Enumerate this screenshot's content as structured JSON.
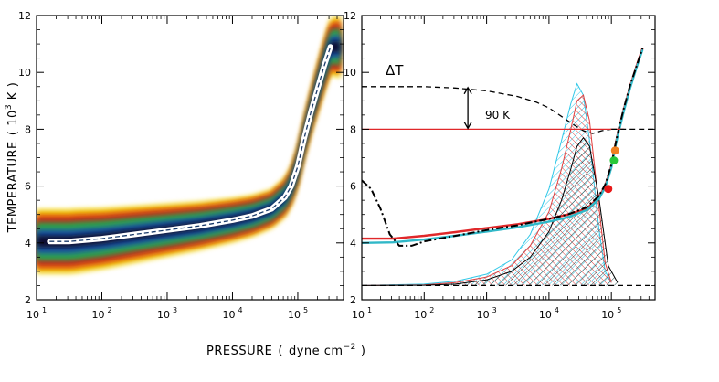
{
  "chart_data": [
    {
      "type": "heatmap",
      "panel": "left",
      "title": "",
      "xlabel_main": "PRESSURE",
      "xlabel_unit": "dyne cm",
      "xlabel_exp": "−2",
      "ylabel_main": "TEMPERATURE",
      "ylabel_unit_base": "10",
      "ylabel_unit_exp": "3",
      "ylabel_unit_tail": " K",
      "xscale": "log",
      "xlim_log10": [
        1.0,
        5.7
      ],
      "ylim": [
        2,
        12
      ],
      "x_ticks": [
        {
          "base": "10",
          "exp": "1"
        },
        {
          "base": "10",
          "exp": "2"
        },
        {
          "base": "10",
          "exp": "3"
        },
        {
          "base": "10",
          "exp": "4"
        },
        {
          "base": "10",
          "exp": "5"
        }
      ],
      "x_tick_log10": [
        1,
        2,
        3,
        4,
        5
      ],
      "y_ticks": [
        "2",
        "4",
        "6",
        "8",
        "10",
        "12"
      ],
      "y_tick_values": [
        2,
        4,
        6,
        8,
        10,
        12
      ],
      "mean_curve": {
        "name": "mean T(P)",
        "log10_p": [
          1.2,
          1.5,
          2.0,
          2.5,
          3.0,
          3.5,
          4.0,
          4.3,
          4.6,
          4.8,
          4.9,
          5.0,
          5.1,
          5.2,
          5.3,
          5.4,
          5.5
        ],
        "t": [
          4.05,
          4.05,
          4.15,
          4.3,
          4.45,
          4.6,
          4.8,
          4.95,
          5.2,
          5.6,
          6.0,
          6.7,
          7.7,
          8.6,
          9.4,
          10.2,
          10.9
        ]
      },
      "colors": [
        "#0a1030",
        "#1f5aa6",
        "#2aa74a",
        "#f2d40c",
        "#e46a10",
        "#c81e1e"
      ]
    },
    {
      "type": "line",
      "panel": "right",
      "xscale": "log",
      "xlim_log10": [
        1.0,
        5.7
      ],
      "ylim": [
        2,
        12
      ],
      "x_ticks": [
        {
          "base": "10",
          "exp": "1"
        },
        {
          "base": "10",
          "exp": "2"
        },
        {
          "base": "10",
          "exp": "3"
        },
        {
          "base": "10",
          "exp": "4"
        },
        {
          "base": "10",
          "exp": "5"
        }
      ],
      "x_tick_log10": [
        1,
        2,
        3,
        4,
        5
      ],
      "y_ticks": [
        "2",
        "4",
        "6",
        "8",
        "10",
        "12"
      ],
      "y_tick_values": [
        2,
        4,
        6,
        8,
        10,
        12
      ],
      "annotations": {
        "delta_t": "ΔT",
        "delta_value": "90 K",
        "arrow_log10_p": 2.7,
        "arrow_t_top": 9.5,
        "arrow_t_bottom": 8.0
      },
      "series": [
        {
          "name": "model red",
          "color": "#e0282a",
          "style": "solid",
          "log10_p": [
            1.0,
            1.5,
            2.0,
            2.5,
            3.0,
            3.5,
            4.0,
            4.3,
            4.6,
            4.8,
            4.9,
            5.0,
            5.05,
            5.1,
            5.2,
            5.3,
            5.4,
            5.5
          ],
          "t": [
            4.15,
            4.15,
            4.25,
            4.38,
            4.52,
            4.66,
            4.85,
            5.0,
            5.2,
            5.6,
            6.0,
            6.7,
            7.3,
            7.8,
            8.7,
            9.5,
            10.2,
            10.85
          ]
        },
        {
          "name": "model cyan",
          "color": "#30b8c8",
          "style": "solid",
          "log10_p": [
            1.0,
            1.5,
            2.0,
            2.5,
            3.0,
            3.5,
            4.0,
            4.3,
            4.6,
            4.8,
            4.9,
            5.0,
            5.05,
            5.1,
            5.2,
            5.3,
            5.4,
            5.5
          ],
          "t": [
            4.0,
            4.02,
            4.12,
            4.25,
            4.4,
            4.55,
            4.75,
            4.9,
            5.15,
            5.55,
            5.95,
            6.65,
            7.25,
            7.75,
            8.65,
            9.45,
            10.15,
            10.8
          ]
        },
        {
          "name": "dash-dot black",
          "color": "#000000",
          "style": "dashdot",
          "log10_p": [
            1.0,
            1.15,
            1.3,
            1.45,
            1.6,
            1.8,
            2.0,
            2.5,
            3.0,
            3.5,
            4.0,
            4.3,
            4.6,
            4.8,
            4.9,
            5.0,
            5.05,
            5.1,
            5.2,
            5.3,
            5.4,
            5.5
          ],
          "t": [
            6.2,
            5.9,
            5.2,
            4.3,
            3.9,
            3.9,
            4.05,
            4.25,
            4.45,
            4.62,
            4.85,
            5.0,
            5.25,
            5.65,
            6.05,
            6.75,
            7.3,
            7.85,
            8.75,
            9.55,
            10.2,
            10.85
          ]
        },
        {
          "name": "dashed black",
          "color": "#000000",
          "style": "dashed",
          "log10_p": [
            1.0,
            1.5,
            2.0,
            2.5,
            3.0,
            3.5,
            3.8,
            4.0,
            4.2,
            4.4,
            4.55,
            4.7,
            4.85,
            5.0
          ],
          "t": [
            9.5,
            9.5,
            9.5,
            9.45,
            9.35,
            9.15,
            8.95,
            8.75,
            8.45,
            8.15,
            7.95,
            7.85,
            7.95,
            8.0
          ]
        },
        {
          "name": "red horizontal 8",
          "color": "#e0282a",
          "style": "solid",
          "log10_p": [
            1.0,
            5.2
          ],
          "t": [
            8.0,
            8.0
          ]
        },
        {
          "name": "dashed black 8",
          "color": "#000000",
          "style": "dashed",
          "log10_p": [
            5.0,
            5.7
          ],
          "t": [
            8.0,
            8.0
          ]
        },
        {
          "name": "baseline dashed",
          "color": "#000000",
          "style": "dashed",
          "log10_p": [
            1.0,
            5.7
          ],
          "t": [
            2.5,
            2.5
          ]
        }
      ],
      "distributions": [
        {
          "name": "cyan hatched",
          "color": "#30c8e8",
          "log10_p": [
            1.0,
            2.0,
            2.5,
            3.0,
            3.4,
            3.7,
            4.0,
            4.2,
            4.35,
            4.45,
            4.55,
            4.65,
            4.8,
            4.9,
            5.0
          ],
          "t": [
            2.5,
            2.55,
            2.65,
            2.9,
            3.4,
            4.3,
            5.9,
            7.6,
            8.9,
            9.6,
            9.2,
            7.6,
            4.5,
            3.0,
            2.6
          ]
        },
        {
          "name": "red hatched",
          "color": "#e04040",
          "log10_p": [
            1.0,
            2.0,
            2.5,
            3.0,
            3.4,
            3.7,
            4.0,
            4.2,
            4.35,
            4.45,
            4.55,
            4.65,
            4.8,
            4.9,
            5.0
          ],
          "t": [
            2.5,
            2.52,
            2.6,
            2.8,
            3.2,
            3.9,
            5.1,
            6.6,
            8.0,
            9.0,
            9.2,
            8.3,
            5.3,
            3.3,
            2.6
          ]
        },
        {
          "name": "black hatched",
          "color": "#000000",
          "log10_p": [
            1.0,
            2.0,
            2.5,
            3.0,
            3.4,
            3.7,
            4.0,
            4.2,
            4.35,
            4.45,
            4.55,
            4.65,
            4.8,
            4.95,
            5.1
          ],
          "t": [
            2.5,
            2.51,
            2.55,
            2.7,
            3.0,
            3.5,
            4.4,
            5.5,
            6.6,
            7.4,
            7.7,
            7.4,
            5.6,
            3.2,
            2.6
          ]
        }
      ],
      "points": [
        {
          "name": "orange",
          "color": "#f08020",
          "log10_p": 5.06,
          "t": 7.25
        },
        {
          "name": "green",
          "color": "#28c838",
          "log10_p": 5.04,
          "t": 6.9
        },
        {
          "name": "red",
          "color": "#e81818",
          "log10_p": 4.95,
          "t": 5.9
        }
      ]
    }
  ]
}
